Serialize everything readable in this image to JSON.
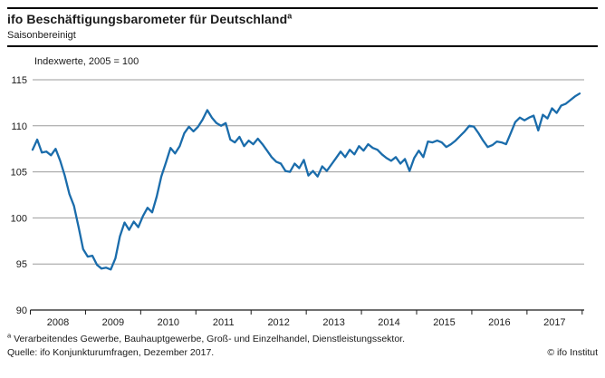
{
  "header": {
    "title": "ifo Beschäftigungsbarometer für Deutschland",
    "title_superscript": "a",
    "subtitle": "Saisonbereinigt"
  },
  "chart_data": {
    "type": "line",
    "title": "ifo Beschäftigungsbarometer für Deutschland (saisonbereinigt)",
    "axis_note": "Indexwerte, 2005 = 100",
    "x_frequency": "monthly",
    "x_start": "2008-01",
    "x_end": "2017-12",
    "x_tick_years": [
      2008,
      2009,
      2010,
      2011,
      2012,
      2013,
      2014,
      2015,
      2016,
      2017
    ],
    "y_ticks": [
      90,
      95,
      100,
      105,
      110,
      115
    ],
    "ylim": [
      90,
      115
    ],
    "grid": "horizontal",
    "legend_position": "none",
    "line_color": "#1a6cab",
    "grid_color": "#9b9b9b",
    "axis_color": "#1a1a1a",
    "series": [
      {
        "name": "ifo Beschäftigungsbarometer",
        "values": [
          107.4,
          108.5,
          107.1,
          107.2,
          106.8,
          107.5,
          106.2,
          104.6,
          102.6,
          101.3,
          99.0,
          96.6,
          95.8,
          95.9,
          94.9,
          94.5,
          94.6,
          94.4,
          95.6,
          98.0,
          99.5,
          98.7,
          99.6,
          99.0,
          100.2,
          101.1,
          100.6,
          102.3,
          104.5,
          106.0,
          107.6,
          107.0,
          107.8,
          109.2,
          109.9,
          109.4,
          109.9,
          110.7,
          111.7,
          110.9,
          110.3,
          110.0,
          110.3,
          108.5,
          108.2,
          108.8,
          107.8,
          108.4,
          108.0,
          108.6,
          108.0,
          107.3,
          106.6,
          106.1,
          105.9,
          105.1,
          105.0,
          105.9,
          105.4,
          106.3,
          104.6,
          105.1,
          104.5,
          105.6,
          105.1,
          105.8,
          106.5,
          107.2,
          106.6,
          107.4,
          106.9,
          107.8,
          107.3,
          108.0,
          107.6,
          107.4,
          106.9,
          106.5,
          106.2,
          106.6,
          105.9,
          106.4,
          105.1,
          106.5,
          107.3,
          106.6,
          108.3,
          108.2,
          108.4,
          108.2,
          107.7,
          108.0,
          108.4,
          108.9,
          109.4,
          110.0,
          109.9,
          109.2,
          108.4,
          107.7,
          107.9,
          108.3,
          108.2,
          108.0,
          109.2,
          110.4,
          110.9,
          110.6,
          110.9,
          111.1,
          109.5,
          111.2,
          110.8,
          111.9,
          111.4,
          112.2,
          112.4,
          112.8,
          113.2,
          113.5
        ]
      }
    ]
  },
  "footer": {
    "footnote_marker": "a",
    "footnote": " Verarbeitendes Gewerbe, Bauhauptgewerbe, Groß- und Einzelhandel, Dienstleistungssektor.",
    "source": "Quelle: ifo Konjunkturumfragen, Dezember 2017.",
    "copyright": "© ifo Institut"
  }
}
